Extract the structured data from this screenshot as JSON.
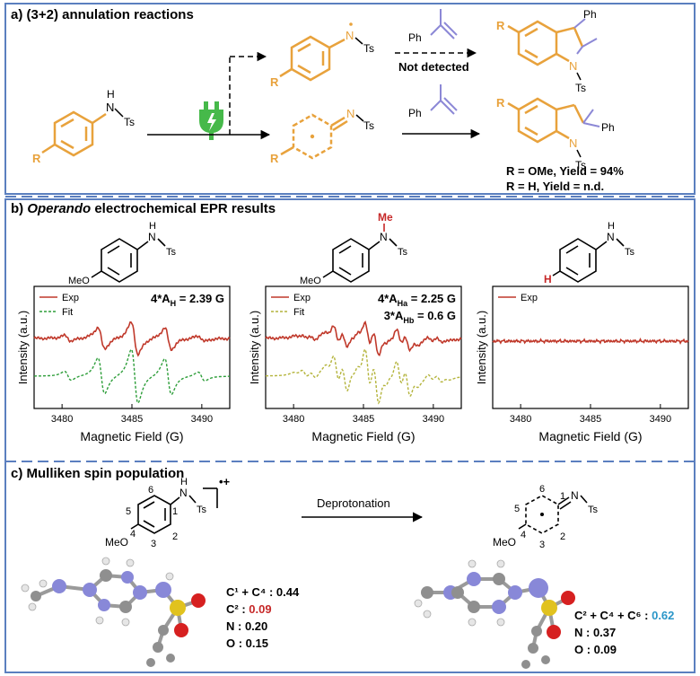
{
  "sections": {
    "a": {
      "title": "a) (3+2) annulation reactions",
      "not_detected": "Not detected",
      "result_1": "R = OMe, Yield = 94%",
      "result_2": "R = H, Yield = n.d."
    },
    "b": {
      "title_prefix": "b) ",
      "title_italic": "Operando",
      "title_rest": " electrochemical EPR results"
    },
    "c": {
      "title": "c) Mulliken spin population",
      "arrow_label": "Deprotonation",
      "left_values": [
        {
          "label": "C¹ + C⁴ : ",
          "value": "0.44"
        },
        {
          "label": "C² : ",
          "value": "0.09"
        },
        {
          "label": "N : ",
          "value": "0.20"
        },
        {
          "label": "O : ",
          "value": "0.15"
        }
      ],
      "right_values": [
        {
          "label": "C² + C⁴ + C⁶ : ",
          "value": "0.62"
        },
        {
          "label": "N : ",
          "value": "0.37"
        },
        {
          "label": "O : ",
          "value": "0.09"
        }
      ]
    }
  },
  "chem_labels": {
    "H": "H",
    "N": "N",
    "Ts": "Ts",
    "R": "R",
    "Ph": "Ph",
    "Me": "Me",
    "MeO": "MeO",
    "O": "O",
    "n1": "1",
    "n2": "2",
    "n3": "3",
    "n4": "4",
    "n5": "5",
    "n6": "6",
    "radical_cation": "•+"
  },
  "colors": {
    "orange": "#e8a23c",
    "purple": "#8c88d6",
    "red": "#c62828",
    "green": "#46b94a",
    "blue": "#2a96c8",
    "exp_line": "#c0392b",
    "fit_green": "#2e9e3a",
    "fit_olive": "#b4b43c",
    "section_border": "#5b7fbf"
  },
  "chart_data": [
    {
      "type": "line",
      "xlabel": "Magnetic Field (G)",
      "ylabel": "Intensity (a.u.)",
      "xlim": [
        3478,
        3492
      ],
      "xticks": [
        3480,
        3485,
        3490
      ],
      "series": [
        {
          "name": "Exp"
        },
        {
          "name": "Fit"
        }
      ],
      "annotations": [
        {
          "text": "4*A",
          "sub": "H",
          "tail": " = 2.39 G"
        }
      ],
      "center": 3485.2,
      "hyperfine": [
        2.39,
        2.39,
        2.39,
        2.39
      ]
    },
    {
      "type": "line",
      "xlabel": "Magnetic Field (G)",
      "ylabel": "Intensity (a.u.)",
      "xlim": [
        3478,
        3492
      ],
      "xticks": [
        3480,
        3485,
        3490
      ],
      "series": [
        {
          "name": "Exp"
        },
        {
          "name": "Fit"
        }
      ],
      "annotations": [
        {
          "text": "4*A",
          "sub": "Ha",
          "tail": " = 2.25 G"
        },
        {
          "text": "3*A",
          "sub": "Hb",
          "tail": " = 0.6 G"
        }
      ],
      "center": 3485.6,
      "hyperfine": [
        2.25,
        2.25,
        2.25,
        2.25,
        0.6,
        0.6,
        0.6
      ]
    },
    {
      "type": "line",
      "xlabel": "Magnetic Field (G)",
      "ylabel": "Intensity (a.u.)",
      "xlim": [
        3478,
        3492
      ],
      "xticks": [
        3480,
        3485,
        3490
      ],
      "series": [
        {
          "name": "Exp"
        }
      ],
      "annotations": [],
      "center": 3485.0,
      "hyperfine": []
    }
  ]
}
